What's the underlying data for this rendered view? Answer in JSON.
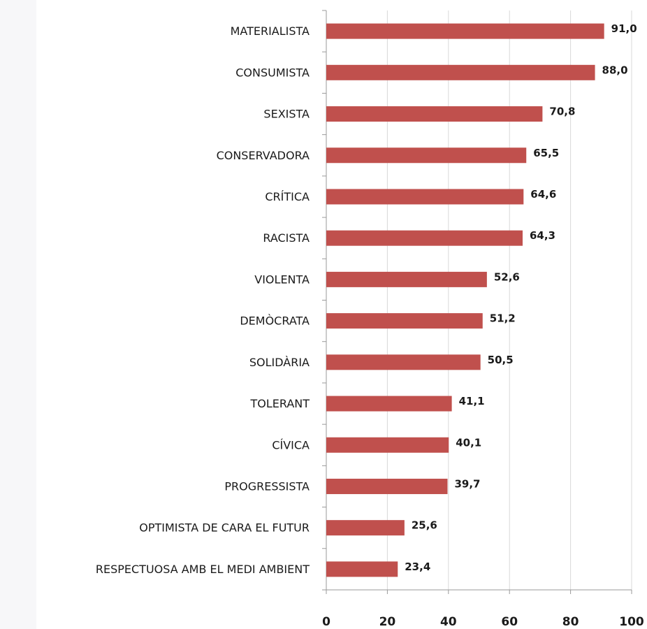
{
  "chart_data": {
    "type": "barh",
    "categories": [
      "MATERIALISTA",
      "CONSUMISTA",
      "SEXISTA",
      "CONSERVADORA",
      "CRÍTICA",
      "RACISTA",
      "VIOLENTA",
      "DEMÒCRATA",
      "SOLIDÀRIA",
      "TOLERANT",
      "CÍVICA",
      "PROGRESSISTA",
      "OPTIMISTA DE CARA EL FUTUR",
      "RESPECTUOSA AMB EL MEDI AMBIENT"
    ],
    "values": [
      91.0,
      88.0,
      70.8,
      65.5,
      64.6,
      64.3,
      52.6,
      51.2,
      50.5,
      41.1,
      40.1,
      39.7,
      25.6,
      23.4
    ],
    "value_labels": [
      "91,0",
      "88,0",
      "70,8",
      "65,5",
      "64,6",
      "64,3",
      "52,6",
      "51,2",
      "50,5",
      "41,1",
      "40,1",
      "39,7",
      "25,6",
      "23,4"
    ],
    "color": "#c0504d",
    "xlim": [
      0,
      100
    ],
    "xticks": [
      0,
      20,
      40,
      60,
      80,
      100
    ],
    "grid": true
  }
}
